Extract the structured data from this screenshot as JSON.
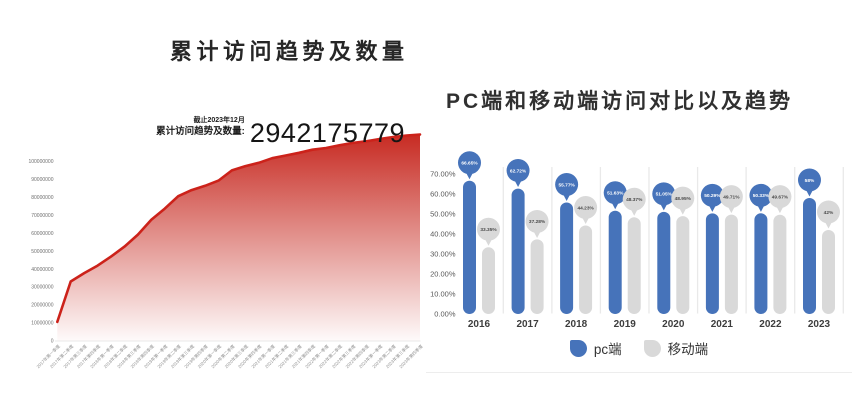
{
  "colors": {
    "pc_blue": "#4673ba",
    "mobile_gray": "#d9d9d9",
    "trend_red": "#cc221a",
    "balloon_text_on_blue": "#ffffff",
    "balloon_text_on_gray": "#4a4a4a"
  },
  "chart_data": [
    {
      "type": "area",
      "title": "累计访问趋势及数量",
      "subtitle_note": "截止2023年12月",
      "total_label": "累计访问趋势及数量:",
      "total_value": "2942175779",
      "categories": [
        "2017年第一季度",
        "2017年第二季度",
        "2017年第三季度",
        "2017年第四季度",
        "2018年第一季度",
        "2018年第二季度",
        "2018年第三季度",
        "2018年第四季度",
        "2019年第一季度",
        "2019年第二季度",
        "2019年第三季度",
        "2019年第四季度",
        "2020年第一季度",
        "2020年第二季度",
        "2020年第三季度",
        "2020年第四季度",
        "2021年第一季度",
        "2021年第二季度",
        "2021年第三季度",
        "2021年第四季度",
        "2022年第一季度",
        "2022年第二季度",
        "2022年第三季度",
        "2022年第四季度",
        "2023年第一季度",
        "2023年第二季度",
        "2023年第三季度",
        "2023年第四季度"
      ],
      "values": [
        10500000,
        33000000,
        37700000,
        41900000,
        46900000,
        52500000,
        59200000,
        67500000,
        73700000,
        80600000,
        84000000,
        86400000,
        89300000,
        95000000,
        97400000,
        99200000,
        101800000,
        103300000,
        104800000,
        106500000,
        107500000,
        109000000,
        110300000,
        111200000,
        112500000,
        113600000,
        114400000,
        115000000
      ],
      "yticks": [
        0,
        10000000,
        20000000,
        30000000,
        40000000,
        50000000,
        60000000,
        70000000,
        80000000,
        90000000,
        100000000
      ],
      "ylim": [
        0,
        118000000
      ],
      "grid": false,
      "line_color": "#cc221a",
      "fill_top": "#c5231a",
      "fill_bottom": "#ffffff"
    },
    {
      "type": "bar",
      "title": "PC端和移动端访问对比以及趋势",
      "categories": [
        "2016",
        "2017",
        "2018",
        "2019",
        "2020",
        "2021",
        "2022",
        "2023"
      ],
      "series": [
        {
          "name": "pc端",
          "color": "#4673ba",
          "values": [
            66.65,
            62.72,
            55.77,
            51.63,
            51.05,
            50.29,
            50.33,
            58
          ],
          "labels": [
            "66.65%",
            "62.72%",
            "55.77%",
            "51.63%",
            "51.05%",
            "50.29%",
            "50.33%",
            "58%"
          ]
        },
        {
          "name": "移动端",
          "color": "#d9d9d9",
          "values": [
            33.35,
            37.28,
            44.23,
            48.37,
            48.95,
            49.71,
            49.67,
            42
          ],
          "labels": [
            "33.35%",
            "37.28%",
            "44.23%",
            "48.37%",
            "48.95%",
            "49.71%",
            "49.67%",
            "42%"
          ]
        }
      ],
      "yticks": [
        "0.00%",
        "10.00%",
        "20.00%",
        "30.00%",
        "40.00%",
        "50.00%",
        "60.00%",
        "70.00%"
      ],
      "ylim": [
        0,
        70
      ],
      "grid": false,
      "legend_position": "bottom"
    }
  ]
}
